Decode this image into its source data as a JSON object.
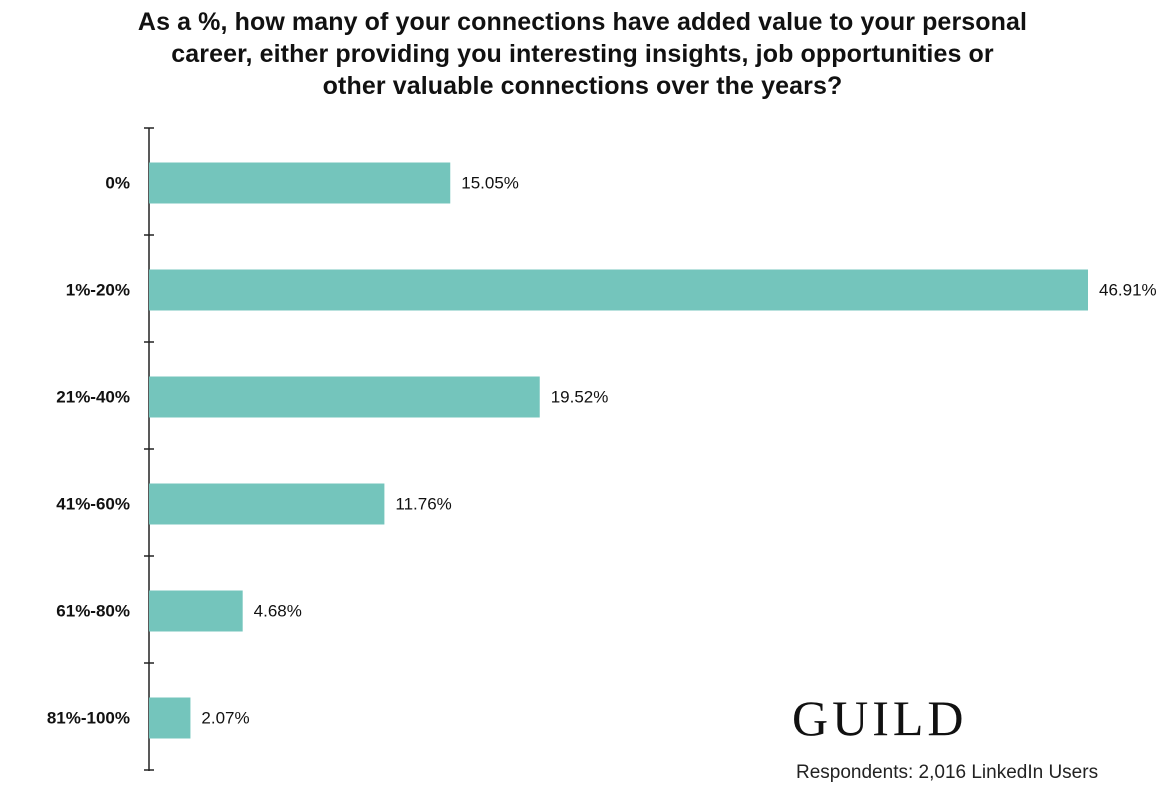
{
  "title_lines": [
    "As a %, how many of your connections have added value to your personal",
    "career, either providing you interesting insights, job opportunities or",
    "other valuable connections over the years?"
  ],
  "chart_data": {
    "type": "bar",
    "orientation": "horizontal",
    "title": "As a %, how many of your connections have added value to your personal career, either providing you interesting insights, job opportunities or other valuable connections over the years?",
    "categories": [
      "0%",
      "1%-20%",
      "21%-40%",
      "41%-60%",
      "61%-80%",
      "81%-100%"
    ],
    "values": [
      15.05,
      46.91,
      19.52,
      11.76,
      4.68,
      2.07
    ],
    "value_labels": [
      "15.05%",
      "46.91%",
      "19.52%",
      "11.76%",
      "4.68%",
      "2.07%"
    ],
    "unit": "%",
    "xlim": [
      0,
      46.91
    ],
    "grid": false,
    "bar_color": "#74c5bc",
    "axis_color": "#222222"
  },
  "brand": {
    "logo_text": "GUILD"
  },
  "footer": {
    "respondents": "Respondents: 2,016 LinkedIn Users"
  }
}
